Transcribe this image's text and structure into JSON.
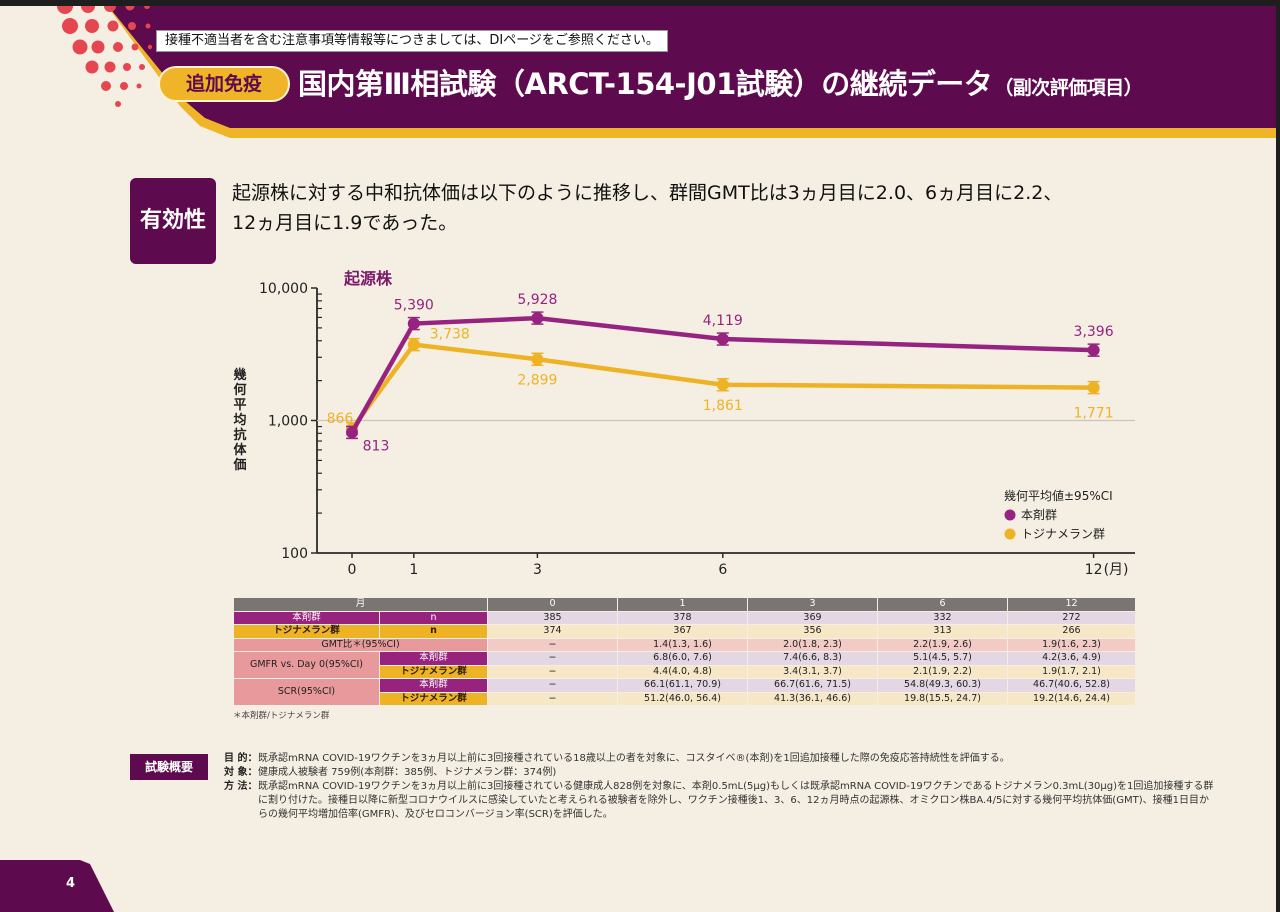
{
  "header": {
    "notice": "接種不適当者を含む注意事項等情報等につきましては、DIページをご参照ください。",
    "tag": "追加免疫",
    "title": "国内第Ⅲ相試験（ARCT-154-J01試験）の継続データ",
    "subtitle": "（副次評価項目）",
    "colors": {
      "brand": "#5e0a4e",
      "accent": "#f0b429"
    }
  },
  "efficacy": {
    "label": "有効性",
    "lead_line1": "起源株に対する中和抗体価は以下のように推移し、群間GMT比は3ヵ月目に2.0、6ヵ月目に2.2、",
    "lead_line2": "12ヵ月目に1.9であった。"
  },
  "chart_data": {
    "type": "line",
    "title": "起源株",
    "xlabel": "(月)",
    "ylabel": "幾何平均抗体価",
    "yscale": "log",
    "ylim": [
      100,
      10000
    ],
    "yticks": [
      100,
      1000,
      10000
    ],
    "ytick_labels": [
      "100",
      "1,000",
      "10,000"
    ],
    "x": [
      0,
      1,
      3,
      6,
      12
    ],
    "xtick_labels": [
      "0",
      "1",
      "3",
      "6",
      "12"
    ],
    "grid": "horizontal line at 1,000",
    "legend_title": "幾何平均値±95%CI",
    "legend_position": "bottom-right",
    "series": [
      {
        "name": "本剤群",
        "color": "#96237f",
        "values": [
          813,
          5390,
          5928,
          4119,
          3396
        ],
        "labels": [
          "813",
          "5,390",
          "5,928",
          "4,119",
          "3,396"
        ]
      },
      {
        "name": "トジナメラン群",
        "color": "#eeb225",
        "values": [
          866,
          3738,
          2899,
          1861,
          1771
        ],
        "labels": [
          "866",
          "3,738",
          "2,899",
          "1,861",
          "1,771"
        ]
      }
    ]
  },
  "table": {
    "header": [
      "月",
      "0",
      "1",
      "3",
      "6",
      "12"
    ],
    "n_label": "n",
    "group_a": "本剤群",
    "group_b": "トジナメラン群",
    "n_a": [
      "385",
      "378",
      "369",
      "332",
      "272"
    ],
    "n_b": [
      "374",
      "367",
      "356",
      "313",
      "266"
    ],
    "gmt_label": "GMT比＊(95%CI)",
    "gmt": [
      "−",
      "1.4(1.3, 1.6)",
      "2.0(1.8, 2.3)",
      "2.2(1.9, 2.6)",
      "1.9(1.6, 2.3)"
    ],
    "gmfr_label": "GMFR vs. Day 0(95%CI)",
    "gmfr_a": [
      "−",
      "6.8(6.0, 7.6)",
      "7.4(6.6, 8.3)",
      "5.1(4.5, 5.7)",
      "4.2(3.6, 4.9)"
    ],
    "gmfr_b": [
      "−",
      "4.4(4.0, 4.8)",
      "3.4(3.1, 3.7)",
      "2.1(1.9, 2.2)",
      "1.9(1.7, 2.1)"
    ],
    "scr_label": "SCR(95%CI)",
    "scr_a": [
      "−",
      "66.1(61.1, 70.9)",
      "66.7(61.6, 71.5)",
      "54.8(49.3, 60.3)",
      "46.7(40.6, 52.8)"
    ],
    "scr_b": [
      "−",
      "51.2(46.0, 56.4)",
      "41.3(36.1, 46.6)",
      "19.8(15.5, 24.7)",
      "19.2(14.6, 24.4)"
    ],
    "footnote": "＊本剤群/トジナメラン群"
  },
  "overview": {
    "label": "試験概要",
    "rows": [
      {
        "key": "目 的：",
        "text": "既承認mRNA COVID-19ワクチンを3ヵ月以上前に3回接種されている18歳以上の者を対象に、コスタイベ®(本剤)を1回追加接種した際の免疫応答持続性を評価する。"
      },
      {
        "key": "対 象：",
        "text": "健康成人被験者 759例(本剤群：385例、トジナメラン群：374例)"
      },
      {
        "key": "方 法：",
        "text": "既承認mRNA COVID-19ワクチンを3ヵ月以上前に3回接種されている健康成人828例を対象に、本剤0.5mL(5μg)もしくは既承認mRNA COVID-19ワクチンであるトジナメラン0.3mL(30μg)を1回追加接種する群に割り付けた。接種日以降に新型コロナウイルスに感染していたと考えられる被験者を除外し、ワクチン接種後1、3、6、12ヵ月時点の起源株、オミクロン株BA.4/5に対する幾何平均抗体価(GMT)、接種1日目からの幾何平均増加倍率(GMFR)、及びセロコンバージョン率(SCR)を評価した。"
      }
    ]
  },
  "page_number": "4"
}
